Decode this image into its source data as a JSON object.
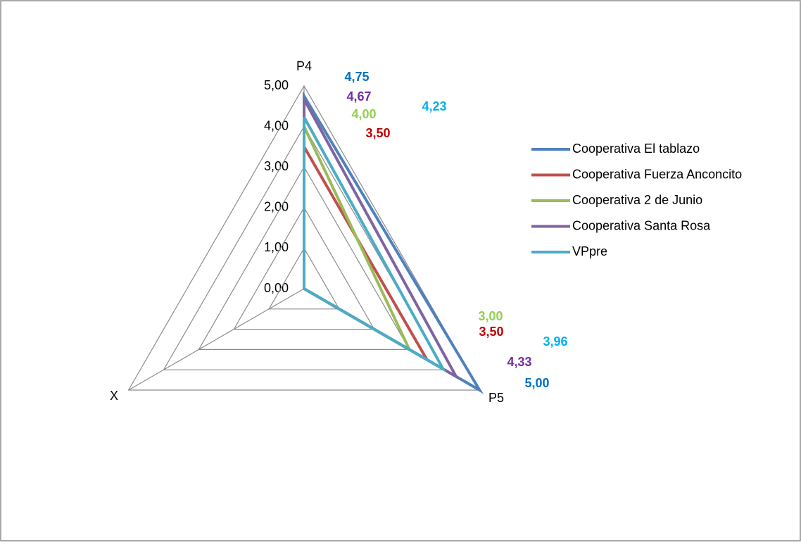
{
  "chart_data": {
    "type": "radar",
    "categories": [
      "P4",
      "P5",
      "X"
    ],
    "ylim": [
      0,
      5
    ],
    "yticks": [
      {
        "value": 0,
        "label": "0,00"
      },
      {
        "value": 1,
        "label": "1,00"
      },
      {
        "value": 2,
        "label": "2,00"
      },
      {
        "value": 3,
        "label": "3,00"
      },
      {
        "value": 4,
        "label": "4,00"
      },
      {
        "value": 5,
        "label": "5,00"
      }
    ],
    "grid": true,
    "legend": "right",
    "series": [
      {
        "name": "Cooperativa El tablazo",
        "color": "#4f81bd",
        "label_color": "#0070c0",
        "values": [
          4.75,
          5.0,
          0
        ],
        "value_labels": [
          "4,75",
          "5,00",
          null
        ]
      },
      {
        "name": "Cooperativa Fuerza Anconcito",
        "color": "#c0504d",
        "label_color": "#c00000",
        "values": [
          3.5,
          3.5,
          0
        ],
        "value_labels": [
          "3,50",
          "3,50",
          null
        ]
      },
      {
        "name": "Cooperativa 2 de Junio",
        "color": "#9bbb59",
        "label_color": "#92d050",
        "values": [
          4.0,
          3.0,
          0
        ],
        "value_labels": [
          "4,00",
          "3,00",
          null
        ]
      },
      {
        "name": "Cooperativa Santa Rosa",
        "color": "#8064a2",
        "label_color": "#7030a0",
        "values": [
          4.67,
          4.33,
          0
        ],
        "value_labels": [
          "4,67",
          "4,33",
          null
        ]
      },
      {
        "name": "VPpre",
        "color": "#4bacc6",
        "label_color": "#00b0f0",
        "values": [
          4.23,
          3.96,
          0
        ],
        "value_labels": [
          "4,23",
          "3,96",
          null
        ]
      }
    ]
  }
}
